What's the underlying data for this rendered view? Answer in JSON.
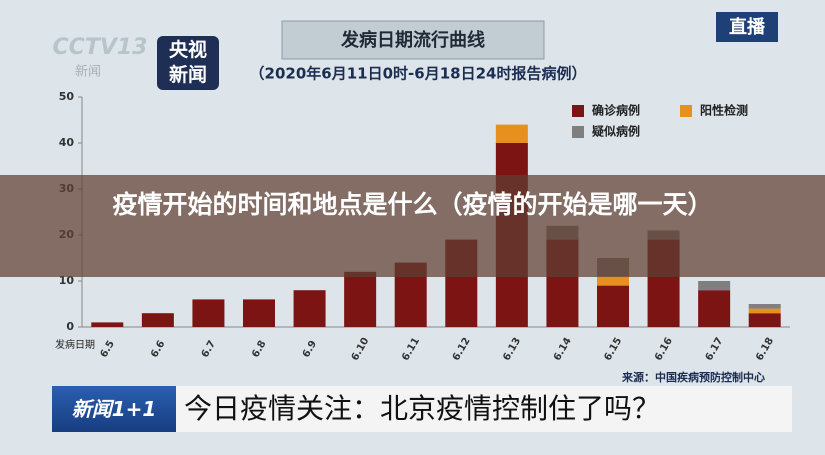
{
  "header": {
    "channel_logo": "CCTV13",
    "channel_sub": "新闻",
    "brand": "央视新闻",
    "live": "直播"
  },
  "headline": "疫情开始的时间和地点是什么（疫情的开始是哪一天）",
  "ticker": {
    "program": "新闻1+1",
    "text": "今日疫情关注：北京疫情控制住了吗？"
  },
  "chart_data": {
    "type": "bar",
    "stacked": true,
    "title": "发病日期流行曲线",
    "subtitle": "（2020年6月11日0时-6月18日24时报告病例）",
    "x_label": "发病日期",
    "source": "来源：中国疾病预防控制中心",
    "categories": [
      "6.5",
      "6.6",
      "6.7",
      "6.8",
      "6.9",
      "6.10",
      "6.11",
      "6.12",
      "6.13",
      "6.14",
      "6.15",
      "6.16",
      "6.17",
      "6.18"
    ],
    "series": [
      {
        "name": "确诊病例",
        "color": "#7b1412",
        "values": [
          1,
          3,
          6,
          6,
          8,
          12,
          14,
          19,
          40,
          19,
          9,
          19,
          8,
          3
        ]
      },
      {
        "name": "阳性检测",
        "color": "#e8901e",
        "values": [
          0,
          0,
          0,
          0,
          0,
          0,
          0,
          0,
          4,
          0,
          2,
          0,
          0,
          1
        ]
      },
      {
        "name": "疑似病例",
        "color": "#7f7f7f",
        "values": [
          0,
          0,
          0,
          0,
          0,
          0,
          0,
          0,
          0,
          3,
          4,
          2,
          2,
          1
        ]
      }
    ],
    "ylim": [
      0,
      50
    ],
    "yticks": [
      0,
      10,
      20,
      30,
      40,
      50
    ],
    "grid": false,
    "legend": "upper right"
  }
}
